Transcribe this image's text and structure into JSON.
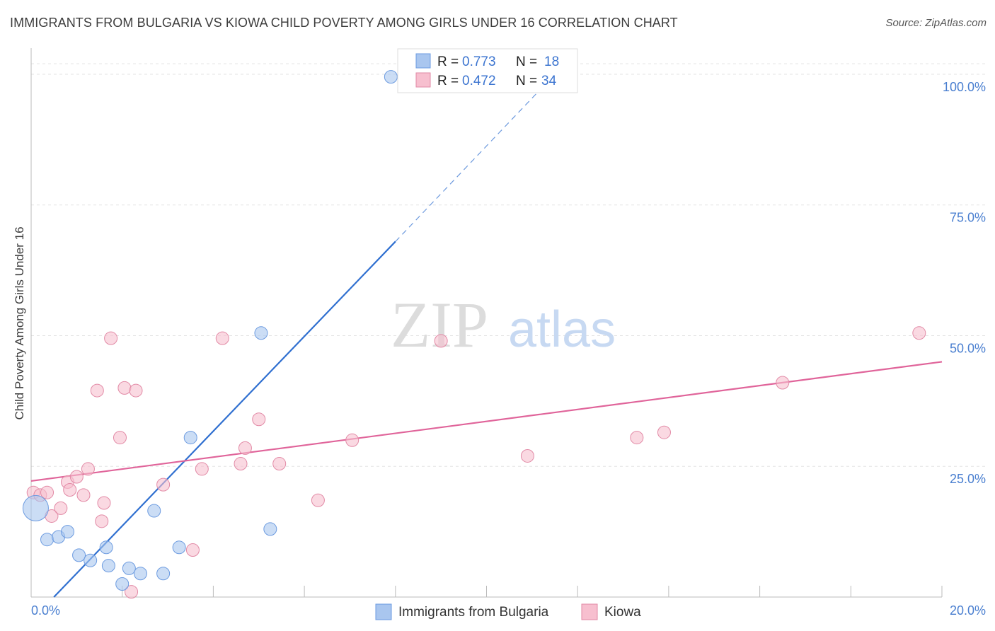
{
  "chart_data": {
    "type": "scatter",
    "title": "IMMIGRANTS FROM BULGARIA VS KIOWA CHILD POVERTY AMONG GIRLS UNDER 16 CORRELATION CHART",
    "source": "Source: ZipAtlas.com",
    "xlabel": "",
    "ylabel": "Child Poverty Among Girls Under 16",
    "xlim": [
      0,
      20
    ],
    "ylim": [
      0,
      105
    ],
    "x_tick_labels": [
      "0.0%",
      "20.0%"
    ],
    "y_ticks": [
      25,
      50,
      75,
      100
    ],
    "y_tick_labels": [
      "25.0%",
      "50.0%",
      "75.0%",
      "100.0%"
    ],
    "watermark": {
      "zip": "ZIP",
      "atlas": "atlas"
    },
    "legend": {
      "r_label": "R = ",
      "n_label": "N = ",
      "entries": [
        {
          "r": "0.773",
          "n": "18"
        },
        {
          "r": "0.472",
          "n": "34"
        }
      ]
    },
    "series": [
      {
        "name": "Immigrants from Bulgaria",
        "color": "#a9c6ef",
        "stroke": "#6c9be0",
        "line_color": "#2f6fd0",
        "trend": {
          "x0": 0.5,
          "y0": 0,
          "x1": 8.0,
          "y1": 68,
          "dash_to_x": 11.5,
          "dash_to_y": 100
        },
        "points": [
          [
            0.1,
            17,
            18
          ],
          [
            0.35,
            11,
            9
          ],
          [
            0.6,
            11.5,
            9
          ],
          [
            0.8,
            12.5,
            9
          ],
          [
            1.05,
            8,
            9
          ],
          [
            1.3,
            7,
            9
          ],
          [
            1.65,
            9.5,
            9
          ],
          [
            1.7,
            6,
            9
          ],
          [
            2.0,
            2.5,
            9
          ],
          [
            2.15,
            5.5,
            9
          ],
          [
            2.4,
            4.5,
            9
          ],
          [
            2.7,
            16.5,
            9
          ],
          [
            2.9,
            4.5,
            9
          ],
          [
            3.25,
            9.5,
            9
          ],
          [
            3.5,
            30.5,
            9
          ],
          [
            5.05,
            50.5,
            9
          ],
          [
            5.25,
            13,
            9
          ],
          [
            7.9,
            99.5,
            9
          ]
        ]
      },
      {
        "name": "Kiowa",
        "color": "#f7bfcf",
        "stroke": "#e28aa6",
        "line_color": "#e0649a",
        "trend": {
          "x0": 0,
          "y0": 22.2,
          "x1": 20,
          "y1": 45
        },
        "points": [
          [
            0.05,
            20,
            9
          ],
          [
            0.2,
            19.5,
            9
          ],
          [
            0.35,
            20,
            9
          ],
          [
            0.45,
            15.5,
            9
          ],
          [
            0.65,
            17,
            9
          ],
          [
            0.8,
            22,
            9
          ],
          [
            0.85,
            20.5,
            9
          ],
          [
            1.0,
            23,
            9
          ],
          [
            1.15,
            19.5,
            9
          ],
          [
            1.25,
            24.5,
            9
          ],
          [
            1.45,
            39.5,
            9
          ],
          [
            1.55,
            14.5,
            9
          ],
          [
            1.6,
            18,
            9
          ],
          [
            1.75,
            49.5,
            9
          ],
          [
            1.95,
            30.5,
            9
          ],
          [
            2.05,
            40,
            9
          ],
          [
            2.2,
            1,
            9
          ],
          [
            2.3,
            39.5,
            9
          ],
          [
            2.9,
            21.5,
            9
          ],
          [
            3.55,
            9,
            9
          ],
          [
            3.75,
            24.5,
            9
          ],
          [
            4.2,
            49.5,
            9
          ],
          [
            4.6,
            25.5,
            9
          ],
          [
            4.7,
            28.5,
            9
          ],
          [
            5.0,
            34,
            9
          ],
          [
            5.45,
            25.5,
            9
          ],
          [
            6.3,
            18.5,
            9
          ],
          [
            7.05,
            30,
            9
          ],
          [
            9.0,
            49,
            9
          ],
          [
            10.9,
            27,
            9
          ],
          [
            13.3,
            30.5,
            9
          ],
          [
            13.9,
            31.5,
            9
          ],
          [
            16.5,
            41,
            9
          ],
          [
            19.5,
            50.5,
            9
          ]
        ]
      }
    ]
  }
}
